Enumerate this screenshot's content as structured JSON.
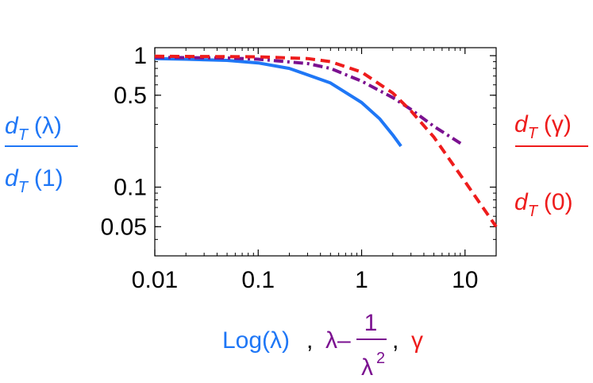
{
  "chart_data": {
    "type": "line",
    "x_scale": "log",
    "y_scale": "log",
    "xlim": [
      0.01,
      20
    ],
    "ylim": [
      0.03,
      1.15
    ],
    "x_ticks": [
      {
        "value": 0.01,
        "label": "0.01"
      },
      {
        "value": 0.1,
        "label": "0.1"
      },
      {
        "value": 1,
        "label": "1"
      },
      {
        "value": 10,
        "label": "10"
      }
    ],
    "y_ticks": [
      {
        "value": 1,
        "label": "1"
      },
      {
        "value": 0.5,
        "label": "0.5"
      },
      {
        "value": 0.1,
        "label": "0.1"
      },
      {
        "value": 0.05,
        "label": "0.05"
      }
    ],
    "xlabel_parts": {
      "blue": "Log(λ)",
      "sep1": ",",
      "purple_prefix": "λ–",
      "purple_num": "1",
      "purple_den": "λ",
      "purple_den_exp": "2",
      "sep2": ",",
      "red": "γ"
    },
    "left_label": {
      "num_sym": "d",
      "num_sub": "T",
      "num_arg": "(λ)",
      "den_sym": "d",
      "den_sub": "T",
      "den_arg": "(1)"
    },
    "right_label": {
      "num_sym": "d",
      "num_sub": "T",
      "num_arg": "(γ)",
      "den_sym": "d",
      "den_sub": "T",
      "den_arg": "(0)"
    },
    "colors": {
      "blue": "#1f77f6",
      "purple": "#7b1190",
      "red": "#ee1c1c",
      "axes": "#000000"
    },
    "series": [
      {
        "color": "#1f77f6",
        "style": "solid",
        "x": [
          0.01,
          0.02,
          0.05,
          0.1,
          0.2,
          0.5,
          1,
          1.5,
          2,
          2.4
        ],
        "y": [
          0.95,
          0.94,
          0.92,
          0.88,
          0.8,
          0.62,
          0.44,
          0.33,
          0.25,
          0.205
        ]
      },
      {
        "color": "#7b1190",
        "style": "dashdot",
        "x": [
          0.01,
          0.05,
          0.1,
          0.3,
          0.5,
          1,
          2,
          3,
          5,
          9.5
        ],
        "y": [
          0.97,
          0.96,
          0.94,
          0.87,
          0.8,
          0.64,
          0.48,
          0.39,
          0.29,
          0.21
        ]
      },
      {
        "color": "#ee1c1c",
        "style": "dashed",
        "x": [
          0.01,
          0.1,
          0.3,
          0.5,
          1,
          2,
          3,
          5,
          10,
          20
        ],
        "y": [
          0.99,
          0.98,
          0.95,
          0.9,
          0.75,
          0.52,
          0.38,
          0.24,
          0.11,
          0.05
        ]
      }
    ],
    "grid": false
  }
}
